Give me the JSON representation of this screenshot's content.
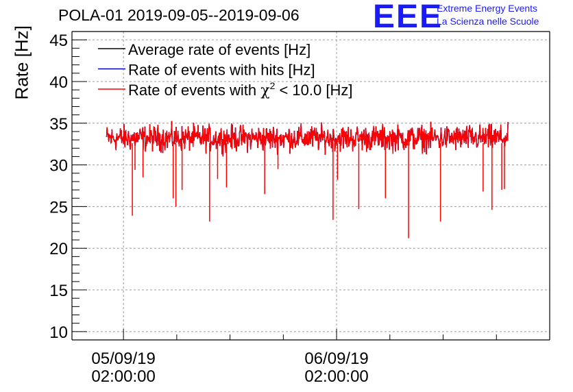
{
  "chart_data": {
    "type": "line",
    "title": "POLA-01 2019-09-05--2019-09-06",
    "xlabel": "",
    "ylabel": "Rate [Hz]",
    "ylim": [
      9,
      46
    ],
    "yticks": [
      10,
      15,
      20,
      25,
      30,
      35,
      40,
      45
    ],
    "ytick_labels": [
      "10",
      "15",
      "20",
      "25",
      "30",
      "35",
      "40",
      "45"
    ],
    "xticks": [
      {
        "date": "05/09/19",
        "time": "02:00:00",
        "hours": 2
      },
      {
        "date": "06/09/19",
        "time": "02:00:00",
        "hours": 26
      }
    ],
    "xlim_hours": [
      -3.8,
      50
    ],
    "data_range_hours": [
      0.1,
      45.3
    ],
    "grid": true,
    "legend": {
      "placement": "top-left",
      "entries": [
        {
          "label": "Average rate of events [Hz]",
          "color": "#000000"
        },
        {
          "label": "Rate of events with hits [Hz]",
          "color": "#0000cc"
        },
        {
          "label_prefix": "Rate of events with ",
          "chi": "χ",
          "sup": "2",
          "label_suffix": " < 10.0 [Hz]",
          "color": "#ff0000"
        }
      ]
    },
    "series": [
      {
        "name": "Average rate of events [Hz]",
        "color": "#000000",
        "mean": 33.2,
        "spread": 1.1
      },
      {
        "name": "Rate of events with hits [Hz]",
        "color": "#0000cc",
        "mean": 33.2,
        "spread": 1.1
      },
      {
        "name": "Rate of events with chi2 < 10.0 [Hz]",
        "color": "#ff0000",
        "mean": 33.2,
        "spread": 1.1,
        "dips": [
          {
            "hours": 3.0,
            "value": 23.9
          },
          {
            "hours": 3.3,
            "value": 29.4
          },
          {
            "hours": 4.2,
            "value": 28.5
          },
          {
            "hours": 7.6,
            "value": 26.0
          },
          {
            "hours": 7.9,
            "value": 25.0
          },
          {
            "hours": 8.6,
            "value": 27.0
          },
          {
            "hours": 11.7,
            "value": 23.2
          },
          {
            "hours": 12.6,
            "value": 28.3
          },
          {
            "hours": 13.6,
            "value": 27.3
          },
          {
            "hours": 17.9,
            "value": 26.5
          },
          {
            "hours": 19.4,
            "value": 29.5
          },
          {
            "hours": 25.6,
            "value": 23.4
          },
          {
            "hours": 26.1,
            "value": 28.2
          },
          {
            "hours": 28.5,
            "value": 24.7
          },
          {
            "hours": 31.5,
            "value": 26.0
          },
          {
            "hours": 34.1,
            "value": 21.2
          },
          {
            "hours": 37.7,
            "value": 23.2
          },
          {
            "hours": 42.5,
            "value": 26.8
          },
          {
            "hours": 43.5,
            "value": 24.6
          },
          {
            "hours": 44.6,
            "value": 27.0
          },
          {
            "hours": 44.9,
            "value": 27.1
          }
        ]
      }
    ]
  },
  "logo": {
    "text": "EEE",
    "line1": "Extreme Energy Events",
    "line2": "La Scienza nelle Scuole"
  }
}
